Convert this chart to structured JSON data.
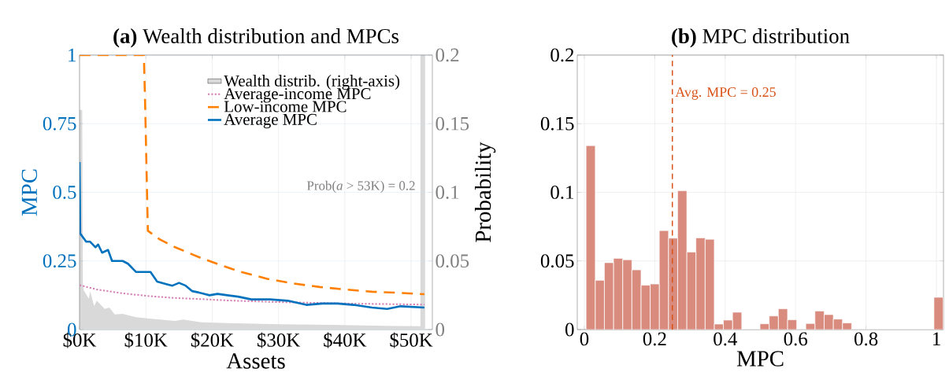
{
  "chart_data": [
    {
      "type": "line",
      "title": "**(a)** Wealth distribution and MPCs",
      "xlabel": "Assets",
      "ylabel": "MPC",
      "y2label": "Probability",
      "xlim": [
        0,
        53.2
      ],
      "ylim": [
        0,
        1
      ],
      "y2lim": [
        0,
        0.2
      ],
      "xticks": [
        {
          "value": 0,
          "label": "$0K"
        },
        {
          "value": 10,
          "label": "$10K"
        },
        {
          "value": 20,
          "label": "$20K"
        },
        {
          "value": 30,
          "label": "$30K"
        },
        {
          "value": 40,
          "label": "$40K"
        },
        {
          "value": 50,
          "label": "$50K"
        }
      ],
      "yticks": [
        0,
        0.25,
        0.5,
        0.75,
        1
      ],
      "y2ticks": [
        0,
        0.05,
        0.1,
        0.15,
        0.2
      ],
      "grid": true,
      "legend": "top right",
      "annotations": [
        "Prob(*a* > 53K) = 0.2"
      ],
      "series": [
        {
          "name": "Wealth distrib. (right-axis)",
          "type": "area",
          "axis": "y2",
          "color": "#d9d9d9",
          "x": [
            0,
            0.4,
            0.5,
            0.6,
            1.4,
            1.6,
            2.2,
            2.6,
            3.8,
            4.5,
            5.3,
            6.5,
            8.5,
            10.5,
            14.4,
            15.6,
            18.4,
            22.3,
            30.2,
            38.1,
            46,
            51.4,
            51.4,
            52.1,
            52.1
          ],
          "values": [
            0.16,
            0.16,
            0.034,
            0.029,
            0.0225,
            0.028,
            0.017,
            0.021,
            0.015,
            0.016,
            0.011,
            0.0115,
            0.009,
            0.008,
            0.0063,
            0.0073,
            0.0053,
            0.0048,
            0.0038,
            0.0034,
            0.0027,
            0.0025,
            0.2,
            0.2,
            0
          ]
        },
        {
          "name": "Average-income MPC",
          "type": "line",
          "line_style": "dotted",
          "color": "#d57fb5",
          "x": [
            0,
            2.6,
            6.5,
            10.5,
            14.4,
            18.4,
            22.3,
            26.3,
            30.2,
            34.2,
            38.1,
            42.1,
            46,
            52
          ],
          "values": [
            0.162,
            0.146,
            0.132,
            0.122,
            0.115,
            0.111,
            0.106,
            0.103,
            0.1,
            0.098,
            0.096,
            0.094,
            0.093,
            0.091
          ]
        },
        {
          "name": "Low-income MPC",
          "type": "line",
          "line_style": "dashed",
          "color": "#ff8000",
          "x": [
            0,
            9.7,
            9.9,
            10.3,
            12,
            14.4,
            18.4,
            20.7,
            24.3,
            28.3,
            32.2,
            36.2,
            40.1,
            44.1,
            48,
            52
          ],
          "values": [
            1,
            1,
            0.81,
            0.36,
            0.33,
            0.3,
            0.26,
            0.24,
            0.21,
            0.185,
            0.168,
            0.155,
            0.146,
            0.138,
            0.134,
            0.129
          ]
        },
        {
          "name": "Average MPC",
          "type": "line",
          "line_style": "solid",
          "color": "#0072bd",
          "x": [
            0,
            0.1,
            1,
            1.6,
            2.4,
            2.8,
            3.4,
            4.3,
            4.9,
            5.9,
            6.5,
            7.3,
            8.5,
            9.3,
            10.7,
            11.7,
            13.2,
            14,
            15,
            16,
            17,
            18,
            19.6,
            20.8,
            22.3,
            23.9,
            25.9,
            28.7,
            31.4,
            34.2,
            36.6,
            38.9,
            41.3,
            44.1,
            46.4,
            48.4,
            52
          ],
          "values": [
            0.61,
            0.35,
            0.32,
            0.32,
            0.3,
            0.31,
            0.28,
            0.29,
            0.25,
            0.25,
            0.25,
            0.24,
            0.21,
            0.21,
            0.21,
            0.175,
            0.165,
            0.16,
            0.17,
            0.16,
            0.14,
            0.135,
            0.125,
            0.13,
            0.125,
            0.12,
            0.11,
            0.11,
            0.105,
            0.09,
            0.095,
            0.095,
            0.09,
            0.08,
            0.075,
            0.085,
            0.08
          ]
        }
      ]
    },
    {
      "type": "histogram",
      "title": "**(b)** MPC distribution",
      "xlabel": "MPC",
      "color": "#d98b7e",
      "xlim": [
        -0.02,
        1.02
      ],
      "ylim": [
        0,
        0.2
      ],
      "xticks": [
        0,
        0.2,
        0.4,
        0.6,
        0.8,
        1
      ],
      "yticks": [
        0,
        0.05,
        0.1,
        0.15,
        0.2
      ],
      "grid": true,
      "bins": [
        0.005,
        0.031,
        0.057,
        0.083,
        0.109,
        0.135,
        0.161,
        0.187,
        0.213,
        0.239,
        0.265,
        0.291,
        0.317,
        0.343,
        0.369,
        0.395,
        0.421,
        0.447,
        0.473,
        0.499,
        0.525,
        0.551,
        0.577,
        0.603,
        0.629,
        0.655,
        0.681,
        0.707,
        0.733,
        0.759,
        0.785,
        0.811,
        0.837,
        0.863,
        0.889,
        0.915,
        0.941,
        0.967,
        0.993,
        1.019
      ],
      "values": [
        0.134,
        0.0359,
        0.0487,
        0.0519,
        0.0508,
        0.0435,
        0.0323,
        0.0332,
        0.0721,
        0.0666,
        0.1011,
        0.0565,
        0.0668,
        0.0658,
        0.004,
        0.0069,
        0.0126,
        0,
        0,
        0.0042,
        0.0099,
        0.0151,
        0.0071,
        0,
        0.0044,
        0.0135,
        0.0109,
        0.0076,
        0.0048,
        0,
        0,
        0,
        0,
        0,
        0,
        0,
        0,
        0,
        0.0235
      ],
      "ref_lines": [
        {
          "axis": "x",
          "value": 0.25,
          "label": "Avg. MPC = 0.25",
          "color": "#d95319",
          "line_style": "dashed"
        }
      ]
    }
  ]
}
